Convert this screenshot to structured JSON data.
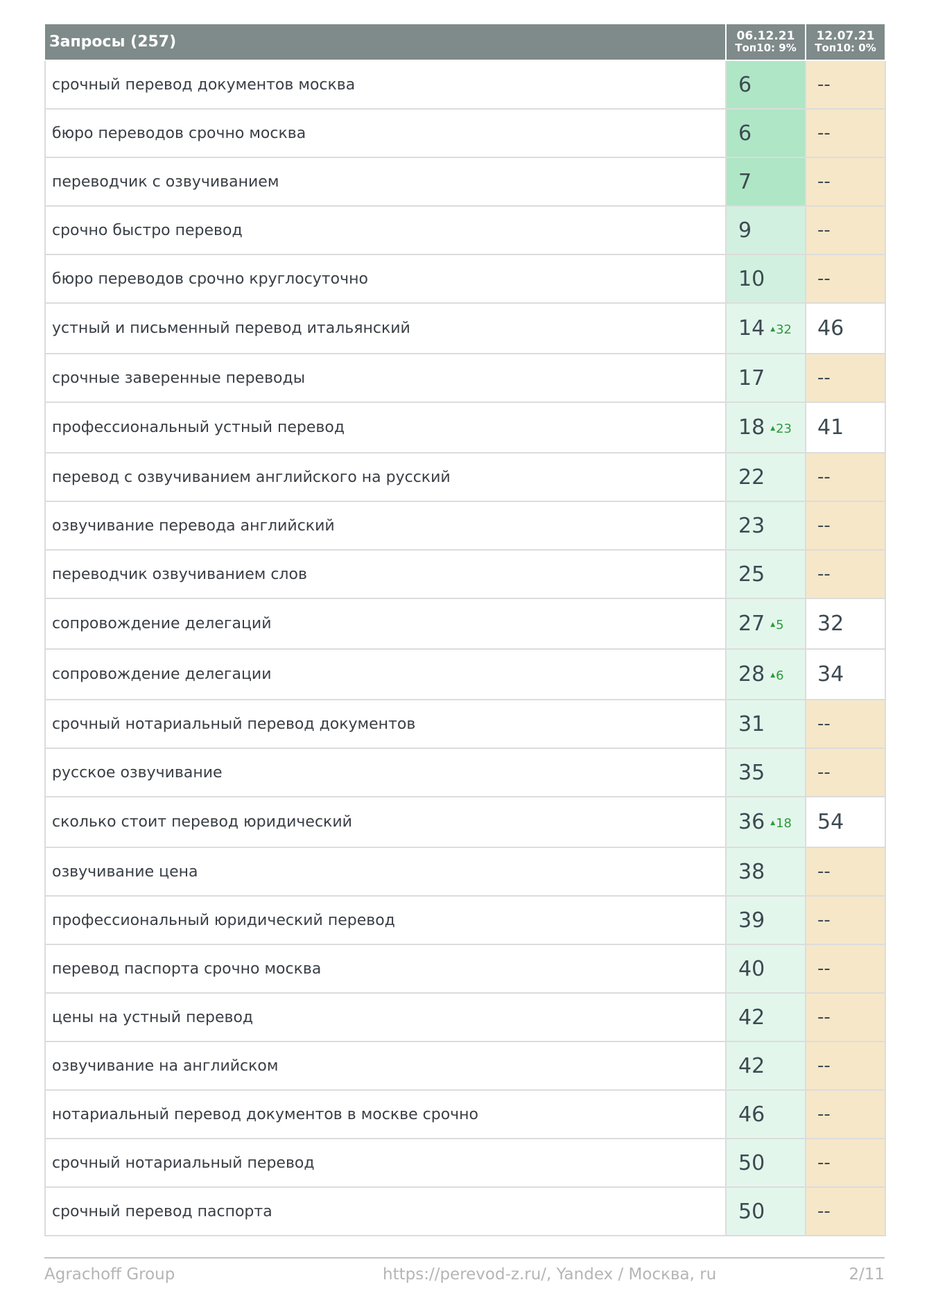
{
  "table": {
    "header": {
      "query_title": "Запросы (257)",
      "columns": [
        {
          "date": "06.12.21",
          "top10": "Топ10: 9%"
        },
        {
          "date": "12.07.21",
          "top10": "Топ10: 0%"
        }
      ]
    },
    "rows": [
      {
        "query": "срочный перевод документов москва",
        "pos1": "6",
        "change": "",
        "pos2": "--"
      },
      {
        "query": "бюро переводов срочно москва",
        "pos1": "6",
        "change": "",
        "pos2": "--"
      },
      {
        "query": "переводчик с озвучиванием",
        "pos1": "7",
        "change": "",
        "pos2": "--"
      },
      {
        "query": "срочно быстро перевод",
        "pos1": "9",
        "change": "",
        "pos2": "--"
      },
      {
        "query": "бюро переводов срочно круглосуточно",
        "pos1": "10",
        "change": "",
        "pos2": "--"
      },
      {
        "query": "устный и письменный перевод итальянский",
        "pos1": "14",
        "change": "32",
        "pos2": "46"
      },
      {
        "query": "срочные заверенные переводы",
        "pos1": "17",
        "change": "",
        "pos2": "--"
      },
      {
        "query": "профессиональный устный перевод",
        "pos1": "18",
        "change": "23",
        "pos2": "41"
      },
      {
        "query": "перевод с озвучиванием английского на русский",
        "pos1": "22",
        "change": "",
        "pos2": "--"
      },
      {
        "query": "озвучивание перевода английский",
        "pos1": "23",
        "change": "",
        "pos2": "--"
      },
      {
        "query": "переводчик озвучиванием слов",
        "pos1": "25",
        "change": "",
        "pos2": "--"
      },
      {
        "query": "сопровождение делегаций",
        "pos1": "27",
        "change": "5",
        "pos2": "32"
      },
      {
        "query": "сопровождение делегации",
        "pos1": "28",
        "change": "6",
        "pos2": "34"
      },
      {
        "query": "срочный нотариальный перевод документов",
        "pos1": "31",
        "change": "",
        "pos2": "--"
      },
      {
        "query": "русское озвучивание",
        "pos1": "35",
        "change": "",
        "pos2": "--"
      },
      {
        "query": "сколько стоит перевод юридический",
        "pos1": "36",
        "change": "18",
        "pos2": "54"
      },
      {
        "query": "озвучивание цена",
        "pos1": "38",
        "change": "",
        "pos2": "--"
      },
      {
        "query": "профессиональный юридический перевод",
        "pos1": "39",
        "change": "",
        "pos2": "--"
      },
      {
        "query": "перевод паспорта срочно москва",
        "pos1": "40",
        "change": "",
        "pos2": "--"
      },
      {
        "query": "цены на устный перевод",
        "pos1": "42",
        "change": "",
        "pos2": "--"
      },
      {
        "query": "озвучивание на английском",
        "pos1": "42",
        "change": "",
        "pos2": "--"
      },
      {
        "query": "нотариальный перевод документов в москве срочно",
        "pos1": "46",
        "change": "",
        "pos2": "--"
      },
      {
        "query": "срочный нотариальный перевод",
        "pos1": "50",
        "change": "",
        "pos2": "--"
      },
      {
        "query": "срочный перевод паспорта",
        "pos1": "50",
        "change": "",
        "pos2": "--"
      }
    ]
  },
  "footer": {
    "company": "Agrachoff Group",
    "source": "https://perevod-z.ru/, Yandex / Москва, ru",
    "page": "2/11"
  },
  "colors": {
    "header_bg": "#7f8a8a",
    "absent_bg": "#f6e7c8",
    "improvement_text": "#2d9b3a"
  }
}
